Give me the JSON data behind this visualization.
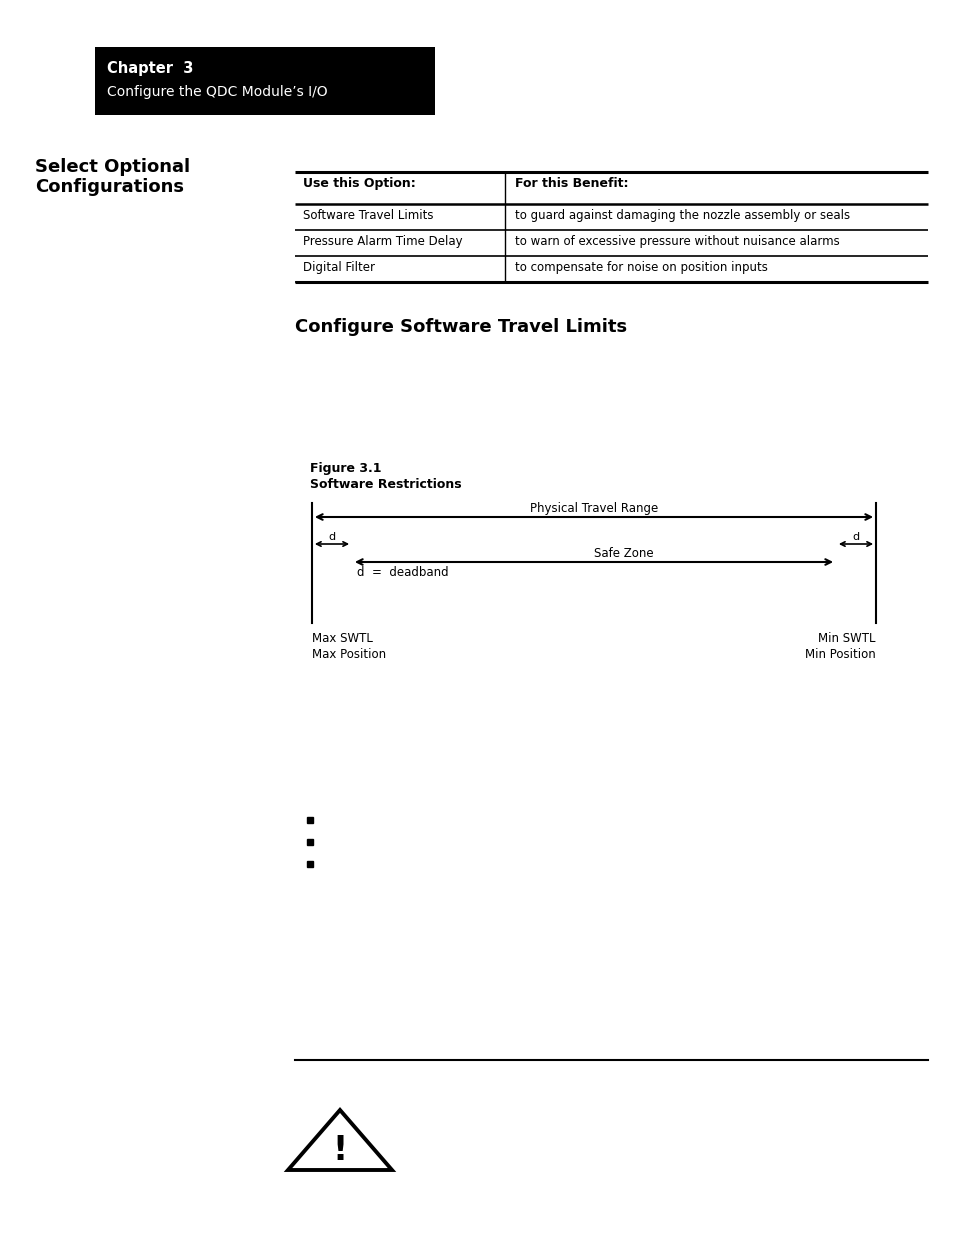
{
  "page_bg": "#ffffff",
  "header_bg": "#000000",
  "header_text_color": "#ffffff",
  "header_line1": "Chapter  3",
  "header_line2": "Configure the QDC Module’s I/O",
  "section_title_line1": "Select Optional",
  "section_title_line2": "Configurations",
  "table_headers": [
    "Use this Option:",
    "For this Benefit:"
  ],
  "table_rows": [
    [
      "Software Travel Limits",
      "to guard against damaging the nozzle assembly or seals"
    ],
    [
      "Pressure Alarm Time Delay",
      "to warn of excessive pressure without nuisance alarms"
    ],
    [
      "Digital Filter",
      "to compensate for noise on position inputs"
    ]
  ],
  "subsection_title": "Configure Software Travel Limits",
  "figure_label": "Figure 3.1",
  "figure_title": "Software Restrictions",
  "fig_physical_label": "Physical Travel Range",
  "fig_safe_label": "Safe Zone",
  "fig_deadband_label": "d  =  deadband",
  "fig_d_label": "d",
  "fig_left_labels": [
    "Max SWTL",
    "Max Position"
  ],
  "fig_right_labels": [
    "Min SWTL",
    "Min Position"
  ],
  "bullet_points": [
    "",
    "",
    ""
  ],
  "bullet_color": "#000000",
  "text_color": "#000000",
  "line_color": "#000000"
}
